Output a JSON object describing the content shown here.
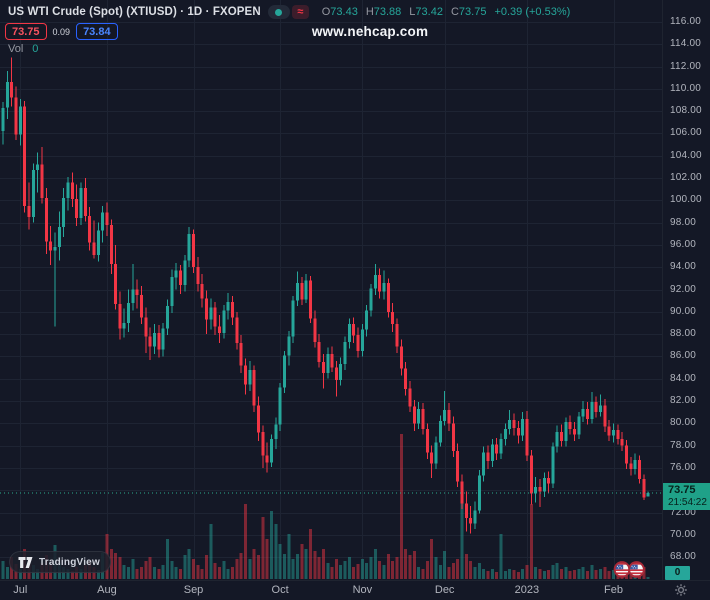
{
  "header": {
    "title": "US WTI Crude (Spot) (XTIUSD) · 1D · FXOPEN",
    "ohlc": {
      "o_label": "O",
      "o": "73.43",
      "h_label": "H",
      "h": "73.88",
      "l_label": "L",
      "l": "73.42",
      "c_label": "C",
      "c": "73.75",
      "change": "+0.39 (+0.53%)"
    },
    "sell": "73.75",
    "spread": "0.09",
    "buy": "73.84",
    "vol_label": "Vol",
    "vol_value": "0",
    "market_flag_glyph": "≈"
  },
  "watermark": "www.nehcap.com",
  "brand": {
    "name": "TradingView"
  },
  "price_scale": {
    "tick_labels": [
      "116.00",
      "114.00",
      "112.00",
      "110.00",
      "108.00",
      "106.00",
      "104.00",
      "102.00",
      "100.00",
      "98.00",
      "96.00",
      "94.00",
      "92.00",
      "90.00",
      "88.00",
      "86.00",
      "84.00",
      "82.00",
      "80.00",
      "78.00",
      "76.00",
      "74.00",
      "72.00",
      "70.00",
      "68.00"
    ],
    "last_price": "73.75",
    "countdown": "21:54:22",
    "volume_badge": "0"
  },
  "time_scale": {
    "ticks": [
      {
        "label": "Jul",
        "index": 4
      },
      {
        "label": "Aug",
        "index": 24
      },
      {
        "label": "Sep",
        "index": 44
      },
      {
        "label": "Oct",
        "index": 64
      },
      {
        "label": "Nov",
        "index": 83
      },
      {
        "label": "Dec",
        "index": 102
      },
      {
        "label": "2023",
        "index": 121
      },
      {
        "label": "Feb",
        "index": 141
      }
    ]
  },
  "colors": {
    "up": "#26a69a",
    "down": "#f23645",
    "grid": "#1e2433",
    "last_price_line": "#2bab8f",
    "last_price_label_bg": "#1fa188",
    "buy_accent": "#2962ff",
    "sell_accent": "#f23645"
  },
  "chart_data": {
    "type": "candlestick",
    "symbol": "XTIUSD",
    "description": "US WTI Crude (Spot)",
    "timeframe": "1D",
    "exchange": "FXOPEN",
    "x_span": "late Jun 2022 - early Feb 2023, daily candles",
    "y_range": [
      66,
      117
    ],
    "last": {
      "open": 73.43,
      "high": 73.88,
      "low": 73.42,
      "close": 73.75,
      "change": 0.39,
      "change_pct": 0.53
    },
    "candles": [
      [
        106.2,
        108.8,
        105.0,
        108.3
      ],
      [
        108.3,
        111.6,
        107.3,
        110.6
      ],
      [
        110.6,
        112.8,
        108.4,
        109.2
      ],
      [
        109.2,
        110.2,
        105.4,
        105.9
      ],
      [
        105.9,
        109.1,
        104.9,
        108.4
      ],
      [
        108.4,
        108.9,
        98.9,
        99.5
      ],
      [
        99.5,
        101.6,
        97.4,
        98.5
      ],
      [
        98.5,
        103.3,
        98.0,
        102.7
      ],
      [
        102.7,
        104.3,
        100.7,
        103.2
      ],
      [
        103.2,
        104.8,
        99.7,
        100.2
      ],
      [
        100.2,
        101.1,
        95.2,
        96.3
      ],
      [
        96.3,
        97.7,
        94.2,
        95.5
      ],
      [
        95.5,
        97.1,
        88.7,
        95.8
      ],
      [
        95.8,
        99.0,
        94.6,
        97.6
      ],
      [
        97.6,
        101.1,
        96.7,
        100.2
      ],
      [
        100.2,
        102.1,
        99.1,
        101.6
      ],
      [
        101.6,
        102.5,
        99.4,
        100.1
      ],
      [
        100.1,
        101.4,
        97.7,
        98.4
      ],
      [
        98.4,
        101.6,
        97.8,
        101.1
      ],
      [
        101.1,
        102.0,
        98.1,
        98.6
      ],
      [
        98.6,
        99.4,
        95.5,
        96.2
      ],
      [
        96.2,
        98.2,
        94.8,
        95.1
      ],
      [
        95.1,
        98.0,
        94.5,
        97.3
      ],
      [
        97.3,
        99.5,
        96.2,
        98.9
      ],
      [
        98.9,
        99.8,
        96.8,
        97.8
      ],
      [
        97.8,
        98.3,
        93.4,
        94.3
      ],
      [
        94.3,
        96.0,
        90.2,
        90.7
      ],
      [
        90.7,
        91.8,
        87.5,
        88.5
      ],
      [
        88.5,
        90.3,
        87.7,
        89.0
      ],
      [
        89.0,
        92.0,
        88.2,
        90.8
      ],
      [
        90.8,
        94.3,
        90.1,
        92.0
      ],
      [
        92.0,
        92.9,
        90.3,
        91.5
      ],
      [
        91.5,
        92.3,
        88.9,
        89.5
      ],
      [
        89.5,
        90.4,
        86.3,
        87.8
      ],
      [
        87.8,
        88.6,
        85.7,
        86.9
      ],
      [
        86.9,
        88.9,
        86.2,
        88.1
      ],
      [
        88.1,
        88.8,
        85.9,
        86.6
      ],
      [
        86.6,
        89.0,
        86.0,
        88.5
      ],
      [
        88.5,
        91.1,
        87.9,
        90.5
      ],
      [
        90.5,
        93.8,
        89.9,
        93.1
      ],
      [
        93.1,
        94.4,
        92.0,
        93.7
      ],
      [
        93.7,
        94.2,
        91.6,
        92.4
      ],
      [
        92.4,
        95.1,
        91.8,
        94.6
      ],
      [
        94.6,
        97.6,
        94.0,
        97.0
      ],
      [
        97.0,
        97.4,
        93.5,
        94.0
      ],
      [
        94.0,
        94.9,
        91.8,
        92.5
      ],
      [
        92.5,
        93.4,
        90.4,
        91.2
      ],
      [
        91.2,
        91.9,
        88.0,
        89.3
      ],
      [
        89.3,
        91.2,
        88.4,
        90.4
      ],
      [
        90.4,
        90.9,
        87.9,
        88.7
      ],
      [
        88.7,
        89.7,
        87.2,
        88.1
      ],
      [
        88.1,
        90.6,
        87.6,
        90.1
      ],
      [
        90.1,
        91.7,
        89.3,
        90.9
      ],
      [
        90.9,
        91.4,
        88.8,
        89.5
      ],
      [
        89.5,
        90.0,
        86.6,
        87.2
      ],
      [
        87.2,
        87.9,
        84.5,
        85.2
      ],
      [
        85.2,
        85.8,
        82.6,
        83.5
      ],
      [
        83.5,
        85.6,
        82.9,
        84.8
      ],
      [
        84.8,
        85.2,
        81.0,
        81.6
      ],
      [
        81.6,
        82.4,
        78.4,
        79.2
      ],
      [
        79.2,
        79.8,
        76.0,
        77.1
      ],
      [
        77.1,
        78.3,
        75.6,
        76.5
      ],
      [
        76.5,
        79.0,
        76.1,
        78.6
      ],
      [
        78.6,
        80.5,
        77.7,
        79.9
      ],
      [
        79.9,
        83.6,
        79.3,
        83.2
      ],
      [
        83.2,
        86.5,
        82.7,
        86.1
      ],
      [
        86.1,
        88.3,
        85.2,
        87.8
      ],
      [
        87.8,
        91.4,
        87.2,
        91.0
      ],
      [
        91.0,
        93.6,
        90.5,
        92.6
      ],
      [
        92.6,
        93.1,
        90.6,
        91.1
      ],
      [
        91.1,
        93.4,
        90.8,
        92.8
      ],
      [
        92.8,
        93.2,
        89.0,
        89.4
      ],
      [
        89.4,
        90.1,
        86.8,
        87.3
      ],
      [
        87.3,
        88.0,
        85.0,
        85.5
      ],
      [
        85.5,
        86.2,
        83.1,
        84.5
      ],
      [
        84.5,
        86.8,
        84.0,
        86.2
      ],
      [
        86.2,
        86.9,
        84.6,
        85.0
      ],
      [
        85.0,
        85.6,
        82.4,
        83.9
      ],
      [
        83.9,
        85.9,
        83.4,
        85.3
      ],
      [
        85.3,
        87.8,
        84.8,
        87.3
      ],
      [
        87.3,
        89.4,
        86.7,
        88.9
      ],
      [
        88.9,
        89.5,
        87.2,
        87.9
      ],
      [
        87.9,
        88.6,
        85.9,
        86.5
      ],
      [
        86.5,
        88.9,
        86.0,
        88.4
      ],
      [
        88.4,
        90.6,
        87.8,
        90.1
      ],
      [
        90.1,
        92.5,
        89.6,
        92.1
      ],
      [
        92.1,
        94.3,
        91.5,
        93.3
      ],
      [
        93.3,
        93.9,
        91.2,
        91.8
      ],
      [
        91.8,
        93.7,
        91.1,
        92.6
      ],
      [
        92.6,
        93.0,
        89.5,
        90.0
      ],
      [
        90.0,
        90.8,
        88.2,
        88.9
      ],
      [
        88.9,
        89.4,
        86.3,
        86.9
      ],
      [
        86.9,
        87.5,
        84.3,
        84.9
      ],
      [
        84.9,
        85.5,
        82.5,
        83.1
      ],
      [
        83.1,
        83.8,
        81.0,
        81.5
      ],
      [
        81.5,
        82.1,
        79.3,
        80.0
      ],
      [
        80.0,
        81.9,
        79.5,
        81.3
      ],
      [
        81.3,
        81.8,
        79.0,
        79.5
      ],
      [
        79.5,
        80.0,
        76.8,
        77.4
      ],
      [
        77.4,
        78.0,
        75.1,
        76.4
      ],
      [
        76.4,
        78.8,
        75.9,
        78.3
      ],
      [
        78.3,
        80.7,
        77.9,
        80.2
      ],
      [
        80.2,
        82.9,
        79.8,
        81.2
      ],
      [
        81.2,
        81.8,
        79.3,
        80.0
      ],
      [
        80.0,
        80.6,
        77.0,
        77.5
      ],
      [
        77.5,
        78.2,
        74.3,
        74.8
      ],
      [
        74.8,
        75.4,
        72.3,
        72.8
      ],
      [
        72.8,
        73.9,
        70.3,
        71.5
      ],
      [
        71.5,
        72.6,
        70.1,
        71.0
      ],
      [
        71.0,
        73.0,
        70.5,
        72.2
      ],
      [
        72.2,
        75.8,
        71.9,
        75.3
      ],
      [
        75.3,
        77.9,
        74.8,
        77.4
      ],
      [
        77.4,
        78.0,
        75.9,
        76.6
      ],
      [
        76.6,
        78.6,
        76.1,
        78.1
      ],
      [
        78.1,
        78.7,
        76.7,
        77.3
      ],
      [
        77.3,
        79.1,
        76.8,
        78.6
      ],
      [
        78.6,
        80.0,
        78.0,
        79.5
      ],
      [
        79.5,
        81.2,
        79.0,
        80.3
      ],
      [
        80.3,
        80.9,
        78.9,
        79.6
      ],
      [
        79.6,
        80.2,
        78.2,
        78.9
      ],
      [
        78.9,
        81.0,
        78.4,
        80.4
      ],
      [
        80.4,
        81.1,
        76.6,
        77.1
      ],
      [
        77.1,
        77.6,
        72.7,
        73.7
      ],
      [
        73.7,
        75.2,
        72.9,
        74.3
      ],
      [
        74.3,
        75.0,
        72.5,
        73.9
      ],
      [
        73.9,
        75.6,
        73.4,
        75.1
      ],
      [
        75.1,
        75.7,
        73.8,
        74.6
      ],
      [
        74.6,
        78.3,
        74.2,
        77.9
      ],
      [
        77.9,
        79.8,
        77.4,
        79.2
      ],
      [
        79.2,
        79.9,
        77.9,
        78.4
      ],
      [
        78.4,
        80.5,
        77.9,
        80.1
      ],
      [
        80.1,
        80.7,
        79.0,
        79.5
      ],
      [
        79.5,
        80.1,
        78.4,
        79.0
      ],
      [
        79.0,
        81.0,
        78.6,
        80.6
      ],
      [
        80.6,
        82.0,
        80.1,
        81.3
      ],
      [
        81.3,
        81.9,
        79.9,
        80.4
      ],
      [
        80.4,
        82.8,
        80.0,
        81.9
      ],
      [
        81.9,
        82.4,
        80.5,
        81.0
      ],
      [
        81.0,
        82.6,
        80.6,
        81.6
      ],
      [
        81.6,
        82.2,
        79.2,
        79.7
      ],
      [
        79.7,
        80.3,
        78.4,
        78.9
      ],
      [
        78.9,
        80.0,
        78.3,
        79.4
      ],
      [
        79.4,
        79.9,
        78.1,
        78.6
      ],
      [
        78.6,
        79.2,
        77.5,
        78.0
      ],
      [
        78.0,
        78.5,
        75.9,
        76.4
      ],
      [
        76.4,
        77.0,
        75.3,
        75.9
      ],
      [
        75.9,
        77.3,
        75.4,
        76.7
      ],
      [
        76.7,
        77.1,
        74.6,
        75.0
      ],
      [
        75.0,
        75.4,
        73.1,
        73.36
      ],
      [
        73.43,
        73.88,
        73.42,
        73.75
      ]
    ],
    "volume": [
      18,
      12,
      22,
      15,
      10,
      30,
      20,
      14,
      10,
      16,
      24,
      14,
      34,
      16,
      12,
      10,
      8,
      12,
      10,
      14,
      18,
      12,
      9,
      26,
      45,
      30,
      26,
      22,
      14,
      12,
      20,
      10,
      12,
      18,
      22,
      12,
      10,
      14,
      40,
      18,
      12,
      10,
      24,
      30,
      20,
      14,
      10,
      24,
      55,
      16,
      12,
      18,
      10,
      12,
      20,
      26,
      75,
      20,
      30,
      24,
      62,
      40,
      68,
      55,
      35,
      25,
      45,
      20,
      25,
      35,
      30,
      50,
      28,
      22,
      30,
      16,
      12,
      20,
      14,
      18,
      22,
      12,
      15,
      20,
      16,
      22,
      30,
      18,
      14,
      25,
      18,
      22,
      145,
      30,
      24,
      28,
      12,
      10,
      18,
      40,
      22,
      14,
      28,
      12,
      16,
      20,
      90,
      25,
      18,
      12,
      16,
      10,
      8,
      10,
      7,
      45,
      8,
      10,
      9,
      7,
      10,
      14,
      75,
      12,
      10,
      8,
      9,
      14,
      16,
      10,
      12,
      8,
      9,
      10,
      12,
      8,
      14,
      9,
      10,
      12,
      8,
      9,
      8,
      7,
      10,
      8,
      7,
      9,
      12,
      2
    ],
    "volume_direction_overrides": {
      "106": "up"
    }
  }
}
